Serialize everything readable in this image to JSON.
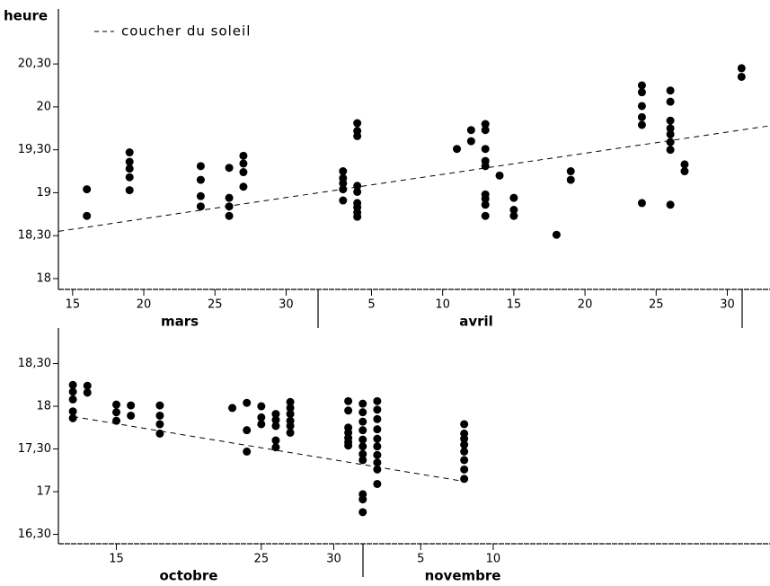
{
  "chart_data": [
    {
      "type": "scatter",
      "ylabel": "heure",
      "legend": "upper left",
      "color": "#000000",
      "month_labels": [
        "mars",
        "avril"
      ],
      "xlim": [
        14,
        64
      ],
      "ylim": [
        17.874,
        21.14
      ],
      "xticks": [
        15,
        20,
        25,
        30,
        {
          "value": 36,
          "label": "5"
        },
        {
          "value": 41,
          "label": "10"
        },
        {
          "value": 46,
          "label": "15"
        },
        {
          "value": 51,
          "label": "20"
        },
        {
          "value": 56,
          "label": "25"
        },
        {
          "value": 61,
          "label": "30"
        }
      ],
      "yticks": [
        18,
        {
          "value": 18.5,
          "label": "18,30"
        },
        19,
        {
          "value": 19.5,
          "label": "19,30"
        },
        20,
        {
          "value": 20.5,
          "label": "20,30"
        }
      ],
      "series": [
        {
          "name": "coucher du soleil",
          "style": "dashed",
          "x": [
            14,
            64
          ],
          "values": [
            18.55,
            19.78
          ]
        },
        {
          "x": [
            16,
            16,
            19,
            19,
            19,
            19,
            19,
            24,
            24,
            24,
            24,
            26,
            26,
            26,
            26,
            27,
            27,
            27,
            27,
            34,
            34,
            34,
            34,
            34,
            35,
            35,
            35,
            35,
            35,
            35,
            35,
            35,
            35,
            42,
            43,
            43,
            44,
            44,
            44,
            44,
            44,
            44,
            44,
            44,
            44,
            45,
            46,
            46,
            46,
            49,
            50,
            50,
            55,
            55,
            55,
            55,
            55,
            55,
            57,
            57,
            57,
            57,
            57,
            57,
            57,
            57,
            58,
            58,
            62,
            62
          ],
          "values": [
            19.04,
            18.73,
            19.47,
            19.36,
            19.28,
            19.18,
            19.03,
            19.31,
            19.15,
            18.96,
            18.84,
            19.29,
            18.94,
            18.84,
            18.73,
            19.43,
            19.34,
            19.24,
            19.07,
            19.25,
            19.17,
            19.11,
            19.04,
            18.91,
            19.81,
            19.72,
            19.66,
            19.08,
            19.01,
            18.88,
            18.83,
            18.77,
            18.72,
            19.51,
            19.73,
            19.6,
            19.8,
            19.73,
            19.51,
            19.37,
            19.31,
            18.98,
            18.93,
            18.86,
            18.73,
            19.2,
            18.94,
            18.8,
            18.73,
            18.51,
            19.25,
            19.15,
            20.25,
            20.17,
            20.01,
            19.88,
            19.79,
            18.88,
            20.19,
            20.06,
            19.84,
            19.75,
            19.68,
            19.59,
            19.5,
            18.86,
            19.33,
            19.25,
            20.45,
            20.35
          ]
        }
      ]
    },
    {
      "type": "scatter",
      "color": "#000000",
      "month_labels": [
        "octobre",
        "novembre"
      ],
      "xlim": [
        11,
        60.1
      ],
      "ylim": [
        16.39,
        18.916
      ],
      "xticks": [
        15,
        25,
        30,
        {
          "value": 36,
          "label": "5"
        },
        {
          "value": 41,
          "label": "10"
        }
      ],
      "yticks": [
        {
          "value": 16.5,
          "label": "16,30"
        },
        17,
        {
          "value": 17.5,
          "label": "17,30"
        },
        18,
        {
          "value": 18.5,
          "label": "18,30"
        }
      ],
      "series": [
        {
          "style": "dashed",
          "x": [
            12,
            39
          ],
          "values": [
            17.88,
            17.12
          ]
        },
        {
          "x": [
            12,
            12,
            12,
            12,
            12,
            13,
            13,
            15,
            15,
            15,
            16,
            16,
            18,
            18,
            18,
            18,
            23,
            24,
            24,
            24,
            25,
            25,
            25,
            26,
            26,
            26,
            26,
            26,
            27,
            27,
            27,
            27,
            27,
            27,
            31,
            31,
            31,
            31,
            31,
            31,
            31,
            32,
            32,
            32,
            32,
            32,
            32,
            32,
            32,
            32,
            32,
            32,
            33,
            33,
            33,
            33,
            33,
            33,
            33,
            33,
            33,
            33,
            39,
            39,
            39,
            39,
            39,
            39,
            39,
            39
          ],
          "values": [
            18.25,
            18.17,
            18.08,
            17.94,
            17.86,
            18.24,
            18.16,
            18.02,
            17.93,
            17.83,
            18.01,
            17.89,
            18.01,
            17.89,
            17.79,
            17.68,
            17.98,
            18.04,
            17.72,
            17.47,
            18.0,
            17.87,
            17.79,
            17.91,
            17.84,
            17.77,
            17.6,
            17.52,
            18.05,
            17.98,
            17.91,
            17.83,
            17.77,
            17.69,
            18.06,
            17.95,
            17.75,
            17.69,
            17.63,
            17.58,
            17.54,
            18.03,
            17.93,
            17.82,
            17.72,
            17.61,
            17.53,
            17.44,
            17.37,
            16.97,
            16.91,
            16.76,
            18.06,
            17.96,
            17.85,
            17.73,
            17.62,
            17.53,
            17.43,
            17.34,
            17.26,
            17.09,
            17.79,
            17.68,
            17.62,
            17.55,
            17.47,
            17.37,
            17.26,
            17.15
          ]
        }
      ]
    }
  ]
}
